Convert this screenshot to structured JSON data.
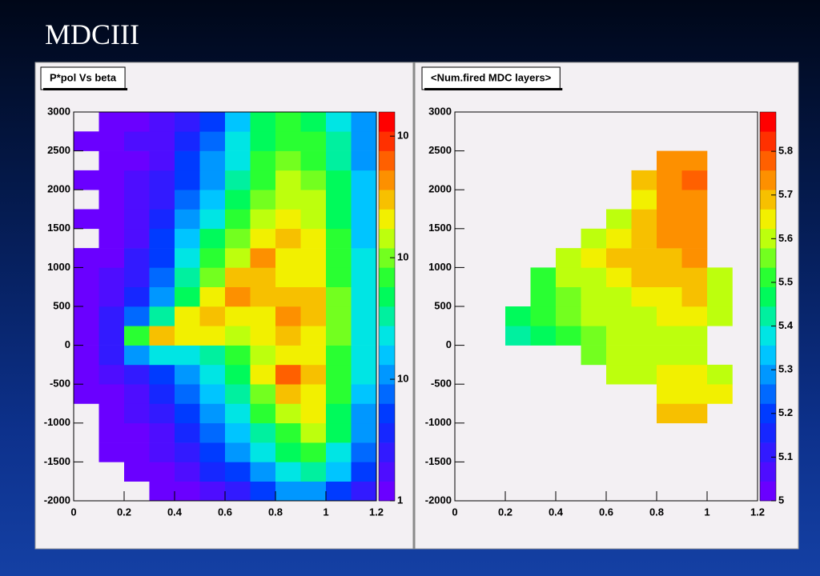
{
  "title": "MDCIII",
  "chart_data": [
    {
      "type": "heatmap",
      "title": "P*pol Vs beta",
      "log_z": true,
      "xbins": [
        0,
        0.1,
        0.2,
        0.3,
        0.4,
        0.5,
        0.6,
        0.7,
        0.8,
        0.9,
        1.0,
        1.1,
        1.2
      ],
      "ybins": [
        -2000,
        -1750,
        -1500,
        -1250,
        -1000,
        -750,
        -500,
        -250,
        0,
        250,
        500,
        750,
        1000,
        1250,
        1500,
        1750,
        2000,
        2250,
        2500,
        2750,
        3000
      ],
      "values": [
        [
          null,
          null,
          null,
          1,
          1,
          2,
          3,
          6,
          10,
          12,
          6,
          3
        ],
        [
          null,
          null,
          1,
          1,
          2,
          4,
          6,
          12,
          25,
          30,
          15,
          5
        ],
        [
          null,
          1,
          1,
          2,
          3,
          5,
          10,
          20,
          50,
          60,
          25,
          8
        ],
        [
          null,
          1,
          1,
          2,
          4,
          8,
          15,
          35,
          80,
          120,
          40,
          10
        ],
        [
          null,
          1,
          2,
          3,
          6,
          10,
          25,
          60,
          150,
          200,
          50,
          12
        ],
        [
          1,
          1,
          2,
          4,
          8,
          15,
          35,
          100,
          300,
          250,
          60,
          15
        ],
        [
          1,
          2,
          3,
          6,
          10,
          20,
          50,
          200,
          600,
          300,
          80,
          20
        ],
        [
          1,
          3,
          10,
          20,
          20,
          30,
          60,
          150,
          250,
          200,
          80,
          20
        ],
        [
          1,
          3,
          60,
          300,
          250,
          200,
          150,
          200,
          300,
          250,
          100,
          25
        ],
        [
          1,
          3,
          8,
          30,
          250,
          350,
          200,
          250,
          400,
          300,
          100,
          25
        ],
        [
          1,
          2,
          4,
          12,
          50,
          250,
          400,
          300,
          300,
          350,
          90,
          25
        ],
        [
          1,
          2,
          3,
          8,
          30,
          100,
          300,
          350,
          250,
          220,
          80,
          20
        ],
        [
          1,
          1,
          3,
          6,
          20,
          60,
          150,
          400,
          250,
          200,
          70,
          20
        ],
        [
          null,
          1,
          2,
          5,
          15,
          40,
          90,
          200,
          300,
          180,
          60,
          18
        ],
        [
          1,
          1,
          2,
          4,
          10,
          25,
          60,
          120,
          200,
          150,
          50,
          15
        ],
        [
          null,
          1,
          2,
          3,
          8,
          18,
          40,
          90,
          150,
          120,
          45,
          15
        ],
        [
          1,
          1,
          2,
          3,
          6,
          12,
          30,
          70,
          120,
          100,
          40,
          15
        ],
        [
          null,
          1,
          1,
          2,
          5,
          10,
          25,
          60,
          90,
          80,
          35,
          12
        ],
        [
          1,
          1,
          2,
          2,
          4,
          8,
          20,
          50,
          80,
          60,
          30,
          12
        ],
        [
          null,
          1,
          1,
          2,
          3,
          6,
          15,
          40,
          60,
          50,
          25,
          10
        ]
      ],
      "xlim": [
        0,
        1.2
      ],
      "ylim": [
        -2000,
        3000
      ],
      "xticks": [
        0,
        0.2,
        0.4,
        0.6,
        0.8,
        1,
        1.2
      ],
      "yticks": [
        -2000,
        -1500,
        -1000,
        -500,
        0,
        500,
        1000,
        1500,
        2000,
        2500,
        3000
      ],
      "zlim": [
        1,
        1580
      ],
      "zticks": [
        1,
        {
          "value": 10,
          "label": "10"
        },
        {
          "value": 100,
          "label": "10"
        },
        {
          "value": 1000,
          "label": "10"
        }
      ]
    },
    {
      "type": "heatmap",
      "title": "<Num.fired MDC layers>",
      "log_z": false,
      "xbins": [
        0,
        0.1,
        0.2,
        0.3,
        0.4,
        0.5,
        0.6,
        0.7,
        0.8,
        0.9,
        1.0,
        1.1,
        1.2
      ],
      "ybins": [
        -2000,
        -1750,
        -1500,
        -1250,
        -1000,
        -750,
        -500,
        -250,
        0,
        250,
        500,
        750,
        1000,
        1250,
        1500,
        1750,
        2000,
        2250,
        2500,
        2750,
        3000
      ],
      "values": [
        [
          null,
          null,
          null,
          null,
          null,
          null,
          null,
          null,
          null,
          null,
          null,
          null
        ],
        [
          null,
          null,
          null,
          null,
          null,
          null,
          null,
          null,
          null,
          null,
          null,
          null
        ],
        [
          null,
          null,
          null,
          null,
          null,
          null,
          null,
          null,
          null,
          null,
          null,
          null
        ],
        [
          null,
          null,
          null,
          null,
          null,
          null,
          null,
          null,
          null,
          null,
          null,
          null
        ],
        [
          null,
          null,
          null,
          null,
          null,
          null,
          null,
          null,
          5.68,
          5.7,
          null,
          null
        ],
        [
          null,
          null,
          null,
          null,
          null,
          null,
          null,
          null,
          5.65,
          5.66,
          5.64,
          null
        ],
        [
          null,
          null,
          null,
          null,
          null,
          null,
          5.6,
          5.62,
          5.63,
          5.64,
          5.62,
          null
        ],
        [
          null,
          null,
          null,
          null,
          null,
          5.55,
          5.58,
          5.6,
          5.6,
          5.62,
          null,
          null
        ],
        [
          null,
          null,
          5.42,
          5.48,
          5.5,
          5.55,
          5.58,
          5.6,
          5.6,
          5.6,
          null,
          null
        ],
        [
          null,
          null,
          5.45,
          5.5,
          5.55,
          5.58,
          5.6,
          5.62,
          5.64,
          5.65,
          5.6,
          null
        ],
        [
          null,
          null,
          null,
          5.5,
          5.55,
          5.6,
          5.62,
          5.65,
          5.66,
          5.68,
          5.62,
          null
        ],
        [
          null,
          null,
          null,
          5.52,
          5.58,
          5.62,
          5.66,
          5.68,
          5.68,
          5.7,
          5.62,
          null
        ],
        [
          null,
          null,
          null,
          null,
          5.58,
          5.63,
          5.68,
          5.7,
          5.7,
          5.72,
          null,
          null
        ],
        [
          null,
          null,
          null,
          null,
          null,
          5.6,
          5.66,
          5.7,
          5.72,
          5.73,
          null,
          null
        ],
        [
          null,
          null,
          null,
          null,
          null,
          null,
          5.62,
          5.7,
          5.72,
          5.74,
          null,
          null
        ],
        [
          null,
          null,
          null,
          null,
          null,
          null,
          null,
          5.66,
          5.73,
          5.75,
          null,
          null
        ],
        [
          null,
          null,
          null,
          null,
          null,
          null,
          null,
          5.68,
          5.74,
          5.76,
          null,
          null
        ],
        [
          null,
          null,
          null,
          null,
          null,
          null,
          null,
          null,
          5.72,
          5.75,
          null,
          null
        ],
        [
          null,
          null,
          null,
          null,
          null,
          null,
          null,
          null,
          null,
          null,
          null,
          null
        ],
        [
          null,
          null,
          null,
          null,
          null,
          null,
          null,
          null,
          null,
          null,
          null,
          null
        ]
      ],
      "xlim": [
        0,
        1.2
      ],
      "ylim": [
        -2000,
        3000
      ],
      "xticks": [
        0,
        0.2,
        0.4,
        0.6,
        0.8,
        1,
        1.2
      ],
      "yticks": [
        -2000,
        -1500,
        -1000,
        -500,
        0,
        500,
        1000,
        1500,
        2000,
        2500,
        3000
      ],
      "zlim": [
        5,
        5.89
      ],
      "zticks": [
        5,
        5.1,
        5.2,
        5.3,
        5.4,
        5.5,
        5.6,
        5.7,
        5.8
      ]
    }
  ]
}
